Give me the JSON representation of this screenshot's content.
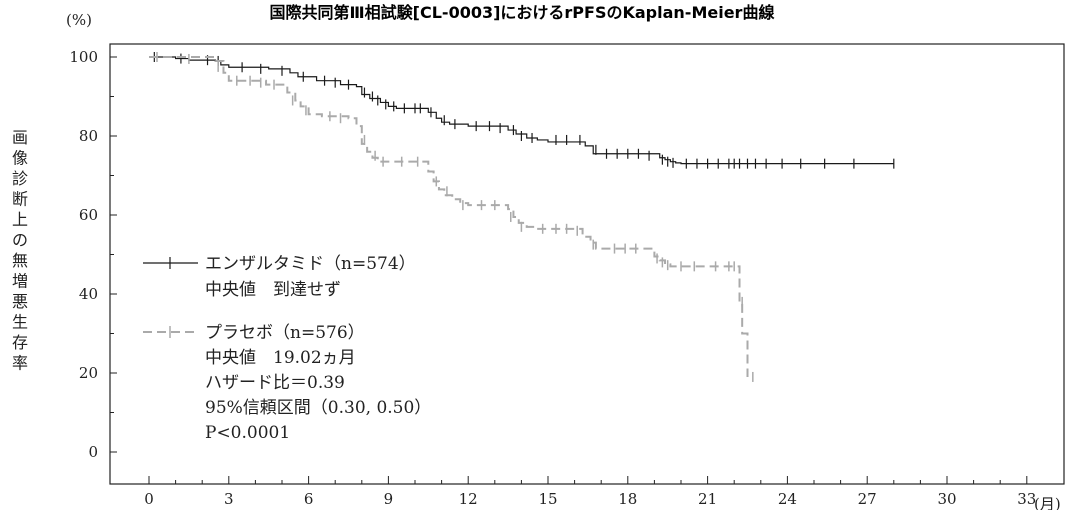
{
  "chart_data": {
    "type": "line",
    "title": "国際共同第Ⅲ相試験[CL-0003]におけるrPFSのKaplan-Meier曲線",
    "ylabel": "画像診断上の無増悪生存率",
    "y_unit": "(%)",
    "x_unit": "(月)",
    "xlim": [
      0,
      33
    ],
    "ylim": [
      0,
      100
    ],
    "x_ticks": [
      0,
      3,
      6,
      9,
      12,
      15,
      18,
      21,
      24,
      27,
      30,
      33
    ],
    "y_ticks": [
      0,
      20,
      40,
      60,
      80,
      100
    ],
    "grid": false,
    "legend_position": "bottom-left",
    "series": [
      {
        "name": "エンザルタミド（n=574）",
        "color": "#1a1a1a",
        "dashed": false,
        "x": [
          0,
          1.0,
          1.5,
          2.5,
          2.7,
          3.0,
          4.5,
          5.3,
          5.6,
          6.3,
          7.2,
          7.8,
          8.0,
          8.3,
          8.7,
          9.0,
          9.3,
          10.5,
          10.8,
          11.0,
          11.3,
          12.0,
          13.5,
          13.8,
          14.2,
          14.6,
          15.0,
          16.4,
          16.7,
          17.0,
          19.2,
          19.4,
          19.6,
          19.8,
          20.0,
          28.0
        ],
        "y": [
          100,
          99.6,
          99.2,
          99.0,
          98.0,
          97.4,
          97.0,
          96.0,
          95.0,
          94.0,
          93.0,
          92.5,
          90.5,
          89.5,
          88.5,
          87.5,
          87.0,
          86.0,
          84.5,
          83.5,
          83.0,
          82.5,
          81.5,
          80.5,
          79.5,
          79.0,
          78.5,
          77.5,
          75.5,
          75.5,
          74.5,
          74.0,
          73.5,
          73.2,
          73.0,
          73.0
        ],
        "censor_x": [
          0.2,
          1.2,
          2.2,
          2.6,
          3.5,
          4.2,
          5.0,
          5.8,
          6.6,
          7.0,
          7.5,
          8.1,
          8.4,
          8.6,
          8.9,
          9.2,
          9.6,
          10.0,
          10.2,
          10.6,
          11.1,
          11.5,
          12.3,
          12.8,
          13.2,
          13.7,
          14.0,
          14.4,
          15.3,
          15.7,
          16.2,
          16.8,
          17.2,
          17.6,
          18.0,
          18.4,
          18.8,
          19.3,
          19.5,
          19.7,
          20.2,
          20.6,
          21.0,
          21.4,
          21.8,
          22.0,
          22.2,
          22.5,
          22.8,
          23.2,
          23.8,
          24.5,
          25.4,
          26.5,
          28.0
        ],
        "censor_y": [
          100,
          99.6,
          99.2,
          99.0,
          97.4,
          97.0,
          96.5,
          95.0,
          94.0,
          93.5,
          93.0,
          91.0,
          90.0,
          89.0,
          88.0,
          87.5,
          87.0,
          87.0,
          87.0,
          86.0,
          84.0,
          83.0,
          82.5,
          82.5,
          82.0,
          81.5,
          80.0,
          79.5,
          79.0,
          79.0,
          79.0,
          76.5,
          75.5,
          75.5,
          75.5,
          75.5,
          75.0,
          74.0,
          73.5,
          73.2,
          73.0,
          73.0,
          73.0,
          73.0,
          73.0,
          73.0,
          73.0,
          73.0,
          73.0,
          73.0,
          73.0,
          73.0,
          73.0,
          73.0,
          73.0
        ]
      },
      {
        "name": "プラセボ（n=576）",
        "color": "#aaaaaa",
        "dashed": true,
        "x": [
          0,
          2.5,
          2.8,
          3.0,
          4.4,
          5.2,
          5.5,
          5.7,
          6.0,
          6.5,
          7.5,
          7.8,
          8.0,
          8.2,
          8.4,
          8.6,
          9.2,
          10.5,
          10.7,
          10.9,
          11.1,
          11.4,
          11.7,
          12.0,
          13.5,
          13.7,
          13.9,
          14.2,
          14.5,
          16.3,
          16.6,
          16.8,
          17.2,
          19.0,
          19.2,
          19.4,
          19.6,
          22.2,
          22.3,
          22.5
        ],
        "y": [
          100,
          99.0,
          96.0,
          94.0,
          93.0,
          91.0,
          89.0,
          87.5,
          85.5,
          85.0,
          84.5,
          82.5,
          78.0,
          76.0,
          74.5,
          73.5,
          73.5,
          71.0,
          68.5,
          66.5,
          65.0,
          64.0,
          63.0,
          62.5,
          61.5,
          59.5,
          58.0,
          57.0,
          56.5,
          54.5,
          53.0,
          51.5,
          51.5,
          49.5,
          48.5,
          47.5,
          47.0,
          38.0,
          30.0,
          19.0
        ],
        "censor_x": [
          0.3,
          1.5,
          2.6,
          3.3,
          3.8,
          4.2,
          4.7,
          5.4,
          5.9,
          6.8,
          7.2,
          8.1,
          8.5,
          8.8,
          9.5,
          10.1,
          10.8,
          11.2,
          11.8,
          12.5,
          13.0,
          13.6,
          14.0,
          14.8,
          15.3,
          15.7,
          16.1,
          16.7,
          17.5,
          17.9,
          18.3,
          19.1,
          19.3,
          19.5,
          20.0,
          20.5,
          21.3,
          21.8,
          22.0,
          22.3,
          22.7
        ],
        "censor_y": [
          100,
          99.5,
          97.5,
          94.0,
          94.0,
          93.5,
          93.0,
          89.0,
          86.5,
          85.0,
          84.5,
          79.0,
          75.0,
          73.5,
          73.5,
          73.5,
          68.5,
          66.0,
          62.5,
          62.5,
          62.5,
          59.5,
          57.0,
          56.5,
          56.5,
          56.5,
          56.0,
          52.5,
          51.5,
          51.5,
          51.5,
          49.0,
          48.0,
          47.3,
          47.0,
          47.0,
          47.0,
          47.0,
          47.0,
          38.0,
          19.0
        ]
      }
    ]
  },
  "legend": {
    "enza_label": "エンザルタミド（n=574）",
    "enza_median": "中央値　到達せず",
    "placebo_label": "プラセボ（n=576）",
    "placebo_median": "中央値　19.02ヵ月",
    "hazard": "ハザード比＝0.39",
    "ci": "95%信頼区間（0.30, 0.50）",
    "pvalue": "P<0.0001"
  }
}
